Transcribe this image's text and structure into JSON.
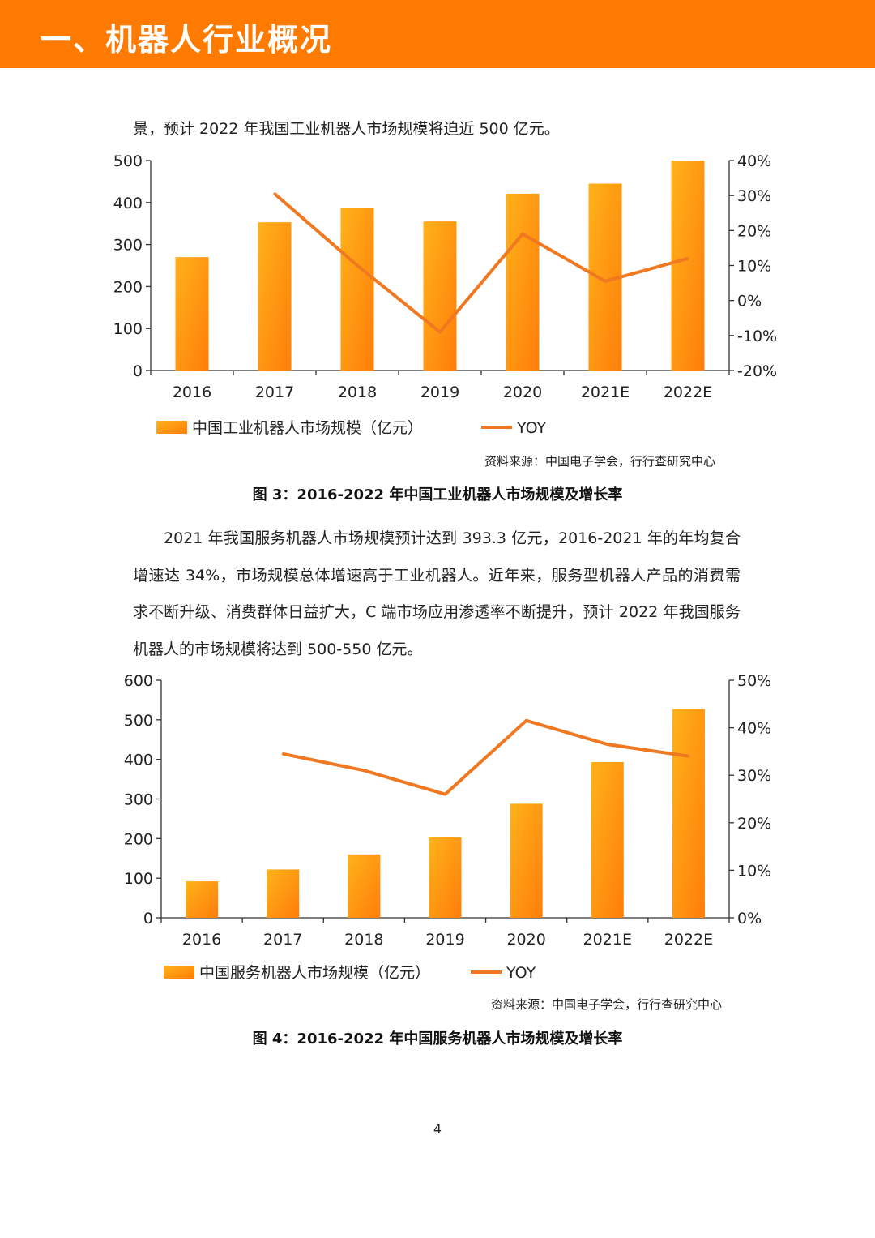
{
  "header": {
    "title": "一、机器人行业概况"
  },
  "intro_text": "景，预计 2022 年我国工业机器人市场规模将迫近 500 亿元。",
  "paragraph": "2021 年我国服务机器人市场规模预计达到 393.3 亿元，2016-2021 年的年均复合增速达 34%，市场规模总体增速高于工业机器人。近年来，服务型机器人产品的消费需求不断升级、消费群体日益扩大，C 端市场应用渗透率不断提升，预计 2022 年我国服务机器人的市场规模将达到 500-550 亿元。",
  "colors": {
    "accent": "#ff7a00",
    "bar_top": "#ffb21a",
    "bar_bottom": "#ff7d0a",
    "line": "#f07820"
  },
  "chart_data": [
    {
      "type": "bar",
      "categories": [
        "2016",
        "2017",
        "2018",
        "2019",
        "2020",
        "2021E",
        "2022E"
      ],
      "series": [
        {
          "name": "中国工业机器人市场规模（亿元）",
          "type": "bar",
          "axis": "left",
          "values": [
            270,
            353,
            388,
            355,
            421,
            445,
            500
          ]
        },
        {
          "name": "YOY",
          "type": "line",
          "axis": "right",
          "values": [
            null,
            30.5,
            10,
            -9,
            19,
            5.5,
            12
          ]
        }
      ],
      "y_left": {
        "ticks": [
          "0",
          "100",
          "200",
          "300",
          "400",
          "500"
        ],
        "ylim": [
          0,
          500
        ]
      },
      "y_right": {
        "ticks": [
          "-20%",
          "-10%",
          "0%",
          "10%",
          "20%",
          "30%",
          "40%"
        ],
        "ylim": [
          -20,
          40
        ]
      },
      "legend_position": "bottom",
      "source": "资料来源：中国电子学会，行行查研究中心",
      "caption": "图 3：2016-2022 年中国工业机器人市场规模及增长率"
    },
    {
      "type": "bar",
      "categories": [
        "2016",
        "2017",
        "2018",
        "2019",
        "2020",
        "2021E",
        "2022E"
      ],
      "series": [
        {
          "name": "中国服务机器人市场规模（亿元）",
          "type": "bar",
          "axis": "left",
          "values": [
            92,
            122,
            160,
            203,
            288,
            393.3,
            527
          ]
        },
        {
          "name": "YOY",
          "type": "line",
          "axis": "right",
          "values": [
            null,
            34.5,
            31,
            26,
            41.5,
            36.5,
            34
          ]
        }
      ],
      "y_left": {
        "ticks": [
          "0",
          "100",
          "200",
          "300",
          "400",
          "500",
          "600"
        ],
        "ylim": [
          0,
          600
        ]
      },
      "y_right": {
        "ticks": [
          "0%",
          "10%",
          "20%",
          "30%",
          "40%",
          "50%"
        ],
        "ylim": [
          0,
          50
        ]
      },
      "legend_position": "bottom",
      "source": "资料来源：中国电子学会，行行查研究中心",
      "caption": "图 4：2016-2022 年中国服务机器人市场规模及增长率"
    }
  ],
  "page_number": "4"
}
